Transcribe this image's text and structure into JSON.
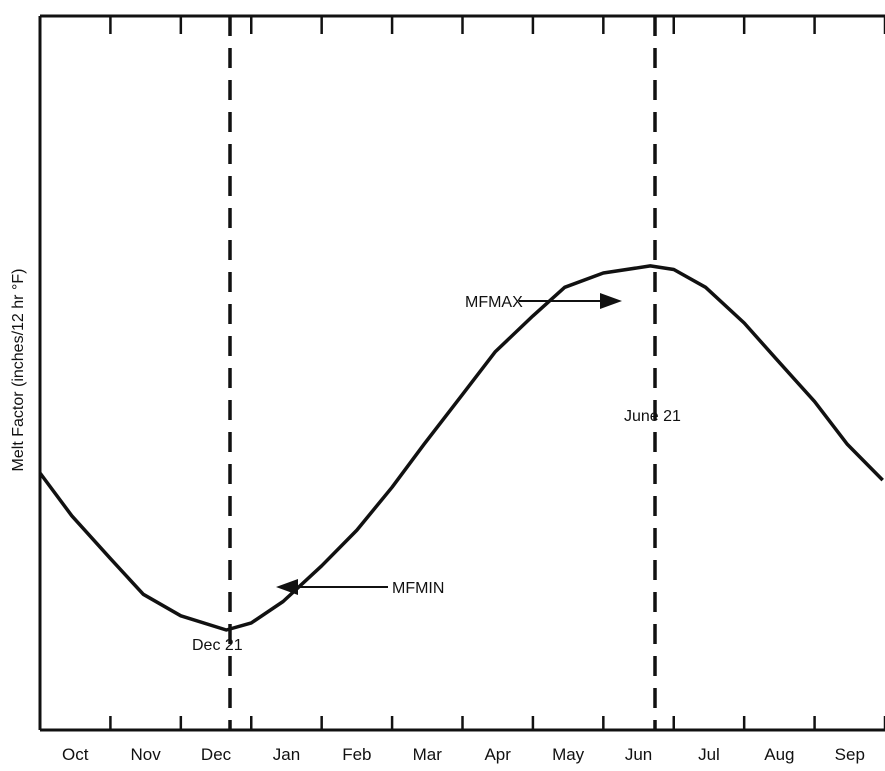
{
  "chart_data": {
    "type": "line",
    "title": "",
    "xlabel": "",
    "ylabel": "Melt Factor (inches/12 hr °F)",
    "x_tick_labels": [
      "Oct",
      "Nov",
      "Dec",
      "Jan",
      "Feb",
      "Mar",
      "Apr",
      "May",
      "Jun",
      "Jul",
      "Aug",
      "Sep"
    ],
    "grid": false,
    "ylim": [
      0,
      1
    ],
    "series": [
      {
        "x": [
          "Oct 1",
          "Oct 15",
          "Nov 1",
          "Nov 15",
          "Dec 1",
          "Dec 21",
          "Jan 1",
          "Jan 15",
          "Feb 1",
          "Feb 15",
          "Mar 1",
          "Mar 15",
          "Apr 1",
          "Apr 15",
          "May 1",
          "May 15",
          "Jun 1",
          "Jun 21",
          "Jul 1",
          "Jul 15",
          "Aug 1",
          "Aug 15",
          "Sep 1",
          "Sep 15",
          "Sep 30"
        ],
        "y": [
          0.36,
          0.3,
          0.24,
          0.19,
          0.16,
          0.14,
          0.15,
          0.18,
          0.23,
          0.28,
          0.34,
          0.4,
          0.47,
          0.53,
          0.58,
          0.62,
          0.64,
          0.65,
          0.645,
          0.62,
          0.57,
          0.52,
          0.46,
          0.4,
          0.35
        ]
      }
    ],
    "annotations": [
      {
        "name": "mfmax",
        "label": "MFMAX",
        "x": "Jun 21"
      },
      {
        "name": "mfmin",
        "label": "MFMIN",
        "x": "Dec 21"
      }
    ],
    "reference_lines": [
      {
        "name": "dec21",
        "label": "Dec 21",
        "x": "Dec 21"
      },
      {
        "name": "june21",
        "label": "June 21",
        "x": "Jun 21"
      }
    ]
  }
}
